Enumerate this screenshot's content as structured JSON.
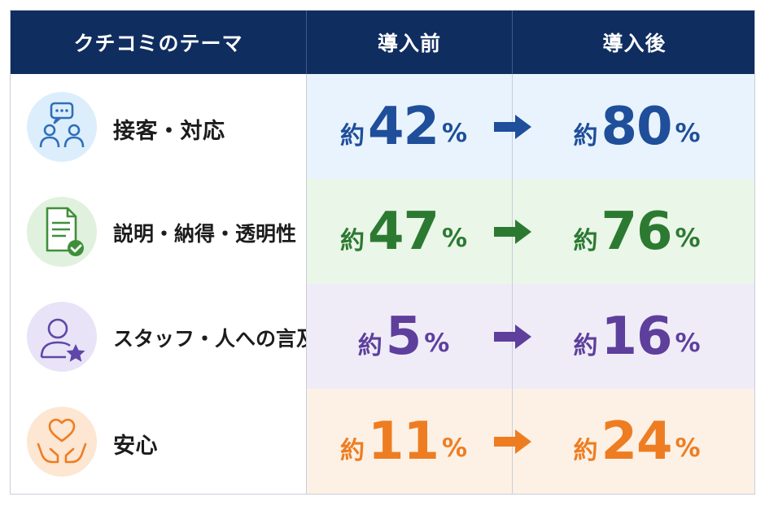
{
  "chart_data": {
    "type": "table",
    "columns": [
      "クチコミのテーマ",
      "導入前",
      "導入後"
    ],
    "rows": [
      {
        "theme": "接客・対応",
        "icon": "people-speech-icon",
        "prefix": "約",
        "before": 42,
        "after": 80,
        "unit": "%",
        "color": "#1f4e9a",
        "bg": "#e8f3fd",
        "icon_bg": "#dceefc",
        "icon_color": "#2f6fb8"
      },
      {
        "theme": "説明・納得・透明性",
        "icon": "document-check-icon",
        "prefix": "約",
        "before": 47,
        "after": 76,
        "unit": "%",
        "color": "#2c7a32",
        "bg": "#eaf6e8",
        "icon_bg": "#e0f1dd",
        "icon_color": "#3f8f3a"
      },
      {
        "theme": "スタッフ・人への言及",
        "icon": "person-star-icon",
        "prefix": "約",
        "before": 5,
        "after": 16,
        "unit": "%",
        "color": "#5e3f9c",
        "bg": "#efecf8",
        "icon_bg": "#e8e3f6",
        "icon_color": "#5e47a8"
      },
      {
        "theme": "安心",
        "icon": "heart-hands-icon",
        "prefix": "約",
        "before": 11,
        "after": 24,
        "unit": "%",
        "color": "#ee7d22",
        "bg": "#fdf1e6",
        "icon_bg": "#fde6d2",
        "icon_color": "#ee7d22"
      }
    ]
  },
  "colors": {
    "header_bg": "#0f2d5f",
    "header_text": "#ffffff",
    "grid": "#c9ced8"
  }
}
